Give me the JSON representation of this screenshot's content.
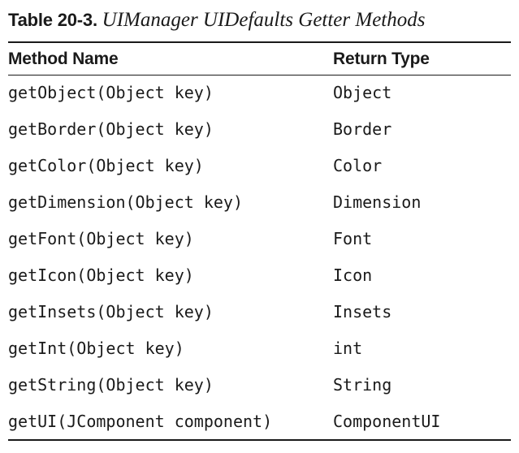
{
  "caption": {
    "label": "Table 20-3.",
    "title": "UIManager UIDefaults Getter Methods"
  },
  "table": {
    "headers": [
      "Method Name",
      "Return Type"
    ],
    "rows": [
      [
        "getObject(Object key)",
        "Object"
      ],
      [
        "getBorder(Object key)",
        "Border"
      ],
      [
        "getColor(Object key)",
        "Color"
      ],
      [
        "getDimension(Object key)",
        "Dimension"
      ],
      [
        "getFont(Object key)",
        "Font"
      ],
      [
        "getIcon(Object key)",
        "Icon"
      ],
      [
        "getInsets(Object key)",
        "Insets"
      ],
      [
        "getInt(Object key)",
        "int"
      ],
      [
        "getString(Object key)",
        "String"
      ],
      [
        "getUI(JComponent component)",
        "ComponentUI"
      ]
    ]
  }
}
